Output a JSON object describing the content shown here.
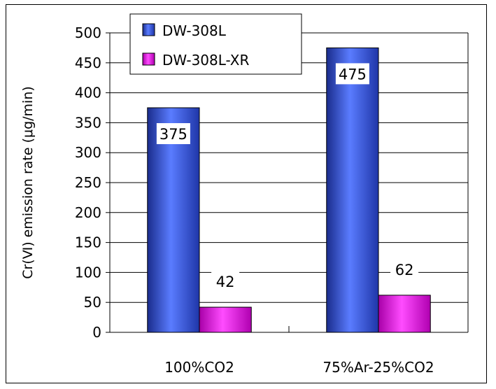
{
  "chart_data": {
    "type": "bar",
    "title": "",
    "xlabel": "",
    "ylabel": "Cr(Ⅵ) emission rate (μg/min)",
    "categories": [
      "100%CO2",
      "75%Ar-25%CO2"
    ],
    "series": [
      {
        "name": "DW-308L",
        "values": [
          375,
          475
        ],
        "color": "#2c4fe0",
        "value_labels": [
          "375",
          "475"
        ]
      },
      {
        "name": "DW-308L-XR",
        "values": [
          42,
          62
        ],
        "color": "#e01ee0",
        "value_labels": [
          "42",
          "62"
        ]
      }
    ],
    "ylim": [
      0,
      500
    ],
    "yticks": [
      0,
      50,
      100,
      150,
      200,
      250,
      300,
      350,
      400,
      450,
      500
    ],
    "ytick_labels": [
      "0",
      "50",
      "100",
      "150",
      "200",
      "250",
      "300",
      "350",
      "400",
      "450",
      "500"
    ],
    "grid": true,
    "legend": "top-left"
  }
}
